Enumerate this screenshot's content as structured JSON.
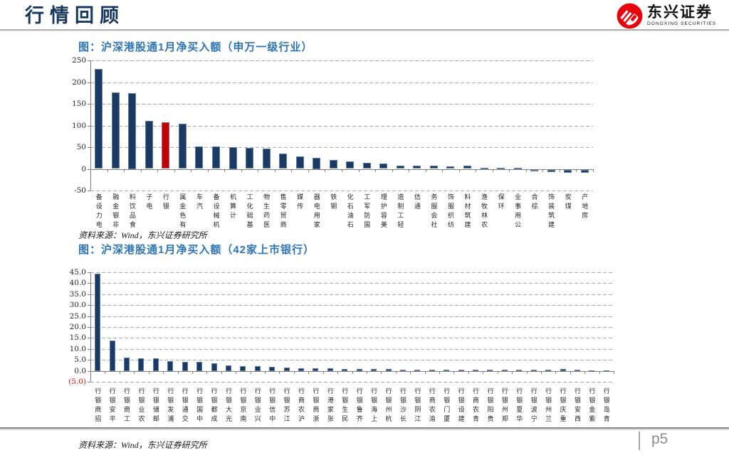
{
  "header": {
    "title": "行情回顾",
    "logo_text": "东兴证券",
    "logo_subtitle": "DONGXING SECURITIES"
  },
  "footer": {
    "source": "资料来源：Wind，东兴证券研究所",
    "page_label": "p5"
  },
  "colors": {
    "bar_navy": "#1B3A63",
    "bar_red": "#C00000",
    "title_navy": "#17365D",
    "chart_title_blue": "#2E74B5",
    "brand_red": "#E8040C",
    "negative_label_red": "#FF0000"
  },
  "chart_data": [
    {
      "type": "bar",
      "title": "图：沪深港股通1月净买入额（申万一级行业）",
      "source": "资料来源：Wind，东兴证券研究所",
      "categories": [
        "电力设备",
        "非银金融",
        "食品饮料",
        "电子",
        "银行",
        "有色金属",
        "汽车",
        "机械设备",
        "计算机",
        "基础化工",
        "医药生物",
        "商贸零售",
        "传媒",
        "家用电器",
        "钢铁",
        "石油石化",
        "国防军工",
        "美容护理",
        "轻工制造",
        "通信",
        "社会服务",
        "纺织服饰",
        "建筑材料",
        "农林牧渔",
        "环保",
        "公用事业",
        "综合",
        "建筑装饰",
        "煤炭",
        "房地产"
      ],
      "values": [
        230,
        177,
        175,
        110,
        107,
        104,
        51,
        51,
        50,
        49,
        46,
        35,
        28,
        25,
        20,
        17,
        14,
        13,
        8,
        8,
        7,
        6,
        7,
        3,
        2,
        3,
        -1,
        -5,
        -7,
        -8
      ],
      "highlight": {
        "category": "银行",
        "index": 4,
        "color": "#C00000"
      },
      "ylim": [
        -50,
        250
      ],
      "yticks": [
        250,
        200,
        150,
        100,
        50,
        0,
        -50
      ],
      "ytick_labels": [
        "250",
        "200",
        "150",
        "100",
        "50",
        "0",
        "-50"
      ],
      "grid": "horizontal-dashed",
      "legend": "none"
    },
    {
      "type": "bar",
      "title": "图：沪深港股通1月净买入额（42家上市银行）",
      "source": "资料来源：Wind，东兴证券研究所",
      "categories": [
        "招商银行",
        "平安银行",
        "工商银行",
        "农业银行",
        "邮储银行",
        "浦发银行",
        "交通银行",
        "中国银行",
        "成都银行",
        "光大银行",
        "南京银行",
        "兴业银行",
        "中信银行",
        "江苏银行",
        "沪农商行",
        "浙商银行",
        "张家港行",
        "民生银行",
        "齐鲁银行",
        "上海银行",
        "杭州银行",
        "长沙银行",
        "江阴银行",
        "渝农商行",
        "厦门银行",
        "建设银行",
        "青农商行",
        "贵阳银行",
        "郑州银行",
        "华夏银行",
        "宁波银行",
        "兰州银行",
        "重庆银行",
        "西安银行",
        "紫金银行",
        "青岛银行"
      ],
      "values": [
        44.3,
        13.9,
        6.0,
        5.6,
        5.6,
        4.5,
        4.2,
        4.1,
        3.4,
        2.4,
        2.3,
        2.3,
        1.8,
        1.5,
        1.2,
        1.2,
        1.1,
        0.9,
        0.9,
        0.9,
        0.9,
        0.6,
        0.6,
        0.6,
        0.5,
        0.5,
        0.5,
        0.5,
        0.5,
        0.6,
        0.6,
        0.5,
        0.7,
        0.6,
        0.2,
        0.1
      ],
      "ylim": [
        -5,
        45
      ],
      "yticks": [
        45,
        40,
        35,
        30,
        25,
        20,
        15,
        10,
        5,
        0,
        -5
      ],
      "ytick_labels": [
        "45.0",
        "40.0",
        "35.0",
        "30.0",
        "25.0",
        "20.0",
        "15.0",
        "10.0",
        "5.0",
        "0.0",
        "(5.0)"
      ],
      "grid": "horizontal-dashed",
      "legend": "none"
    }
  ]
}
